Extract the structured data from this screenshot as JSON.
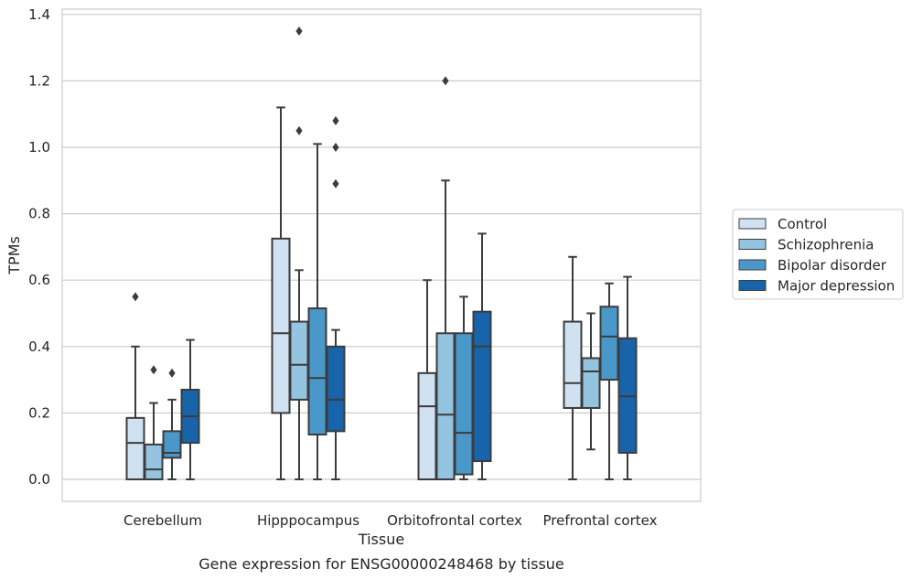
{
  "chart_data": {
    "type": "box",
    "caption": "Gene expression for ENSG00000248468 by tissue",
    "xlabel": "Tissue",
    "ylabel": "TPMs",
    "ylim": [
      -0.065,
      1.42
    ],
    "yticks": [
      0.0,
      0.2,
      0.4,
      0.6,
      0.8,
      1.0,
      1.2,
      1.4
    ],
    "ytick_labels": [
      "0.0",
      "0.2",
      "0.4",
      "0.6",
      "0.8",
      "1.0",
      "1.2",
      "1.4"
    ],
    "grid": true,
    "legend_placement": "right, outside plot",
    "categories": [
      "Cerebellum",
      "Hipppocampus",
      "Orbitofrontal cortex",
      "Prefrontal cortex"
    ],
    "series": [
      {
        "name": "Control",
        "color": "#d0e1f2",
        "boxes": [
          {
            "whislo": 0.0,
            "q1": 0.0,
            "med": 0.11,
            "q3": 0.185,
            "whishi": 0.4,
            "fliers": [
              0.55
            ]
          },
          {
            "whislo": 0.0,
            "q1": 0.2,
            "med": 0.44,
            "q3": 0.725,
            "whishi": 1.12,
            "fliers": []
          },
          {
            "whislo": 0.0,
            "q1": 0.0,
            "med": 0.22,
            "q3": 0.32,
            "whishi": 0.6,
            "fliers": []
          },
          {
            "whislo": 0.0,
            "q1": 0.215,
            "med": 0.29,
            "q3": 0.475,
            "whishi": 0.67,
            "fliers": []
          }
        ]
      },
      {
        "name": "Schizophrenia",
        "color": "#94c4df",
        "boxes": [
          {
            "whislo": 0.0,
            "q1": 0.0,
            "med": 0.03,
            "q3": 0.105,
            "whishi": 0.23,
            "fliers": [
              0.33
            ]
          },
          {
            "whislo": 0.0,
            "q1": 0.24,
            "med": 0.345,
            "q3": 0.475,
            "whishi": 0.63,
            "fliers": [
              1.05,
              1.35
            ]
          },
          {
            "whislo": 0.0,
            "q1": 0.0,
            "med": 0.195,
            "q3": 0.44,
            "whishi": 0.9,
            "fliers": [
              1.2
            ]
          },
          {
            "whislo": 0.09,
            "q1": 0.215,
            "med": 0.325,
            "q3": 0.365,
            "whishi": 0.5,
            "fliers": []
          }
        ]
      },
      {
        "name": "Bipolar disorder",
        "color": "#4a98c9",
        "boxes": [
          {
            "whislo": 0.0,
            "q1": 0.065,
            "med": 0.08,
            "q3": 0.145,
            "whishi": 0.24,
            "fliers": [
              0.32
            ]
          },
          {
            "whislo": 0.0,
            "q1": 0.135,
            "med": 0.305,
            "q3": 0.515,
            "whishi": 1.01,
            "fliers": []
          },
          {
            "whislo": 0.0,
            "q1": 0.015,
            "med": 0.14,
            "q3": 0.44,
            "whishi": 0.55,
            "fliers": []
          },
          {
            "whislo": 0.0,
            "q1": 0.3,
            "med": 0.43,
            "q3": 0.52,
            "whishi": 0.59,
            "fliers": []
          }
        ]
      },
      {
        "name": "Major depression",
        "color": "#1764ab",
        "boxes": [
          {
            "whislo": 0.0,
            "q1": 0.11,
            "med": 0.19,
            "q3": 0.27,
            "whishi": 0.42,
            "fliers": []
          },
          {
            "whislo": 0.0,
            "q1": 0.145,
            "med": 0.24,
            "q3": 0.4,
            "whishi": 0.45,
            "fliers": [
              0.89,
              1.0,
              1.08
            ]
          },
          {
            "whislo": 0.0,
            "q1": 0.055,
            "med": 0.4,
            "q3": 0.505,
            "whishi": 0.74,
            "fliers": []
          },
          {
            "whislo": 0.0,
            "q1": 0.08,
            "med": 0.25,
            "q3": 0.425,
            "whishi": 0.61,
            "fliers": []
          }
        ]
      }
    ]
  }
}
